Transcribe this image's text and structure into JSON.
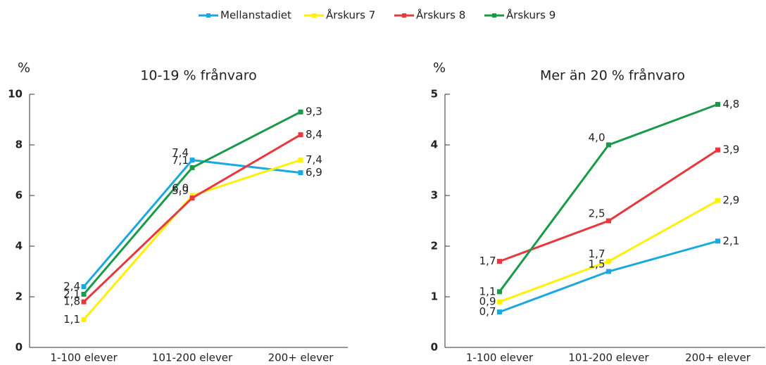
{
  "chart_data": [
    {
      "type": "line",
      "title": "10-19 % frånvaro",
      "y_label": "%",
      "categories": [
        "1-100 elever",
        "101-200 elever",
        "200+ elever"
      ],
      "ylim": [
        0,
        10
      ],
      "yticks": [
        0,
        2,
        4,
        6,
        8,
        10
      ],
      "series": [
        {
          "name": "Mellanstadiet",
          "color": "#1ba8e0",
          "values": [
            2.4,
            7.4,
            6.9
          ],
          "value_labels": [
            "2,4",
            "7,4",
            "6,9"
          ]
        },
        {
          "name": "Årskurs 7",
          "color": "#fff200",
          "values": [
            1.1,
            6.0,
            7.4
          ],
          "value_labels": [
            "1,1",
            "6,0",
            "7,4"
          ]
        },
        {
          "name": "Årskurs 8",
          "color": "#e8383d",
          "values": [
            1.8,
            5.9,
            8.4
          ],
          "value_labels": [
            "1,8",
            "5,9",
            "8,4"
          ]
        },
        {
          "name": "Årskurs 9",
          "color": "#1a9a48",
          "values": [
            2.1,
            7.1,
            9.3
          ],
          "value_labels": [
            "2,1",
            "7,1",
            "9,3"
          ]
        }
      ]
    },
    {
      "type": "line",
      "title": "Mer än 20 % frånvaro",
      "y_label": "%",
      "categories": [
        "1-100 elever",
        "101-200 elever",
        "200+ elever"
      ],
      "ylim": [
        0,
        5
      ],
      "yticks": [
        0,
        1,
        2,
        3,
        4,
        5
      ],
      "series": [
        {
          "name": "Mellanstadiet",
          "color": "#1ba8e0",
          "values": [
            0.7,
            1.5,
            2.1
          ],
          "value_labels": [
            "0,7",
            "1,5",
            "2,1"
          ]
        },
        {
          "name": "Årskurs 7",
          "color": "#fff200",
          "values": [
            0.9,
            1.7,
            2.9
          ],
          "value_labels": [
            "0,9",
            "1,7",
            "2,9"
          ]
        },
        {
          "name": "Årskurs 8",
          "color": "#e8383d",
          "values": [
            1.7,
            2.5,
            3.9
          ],
          "value_labels": [
            "1,7",
            "2,5",
            "3,9"
          ]
        },
        {
          "name": "Årskurs 9",
          "color": "#1a9a48",
          "values": [
            1.1,
            4.0,
            4.8
          ],
          "value_labels": [
            "1,1",
            "4,0",
            "4,8"
          ]
        }
      ]
    }
  ]
}
